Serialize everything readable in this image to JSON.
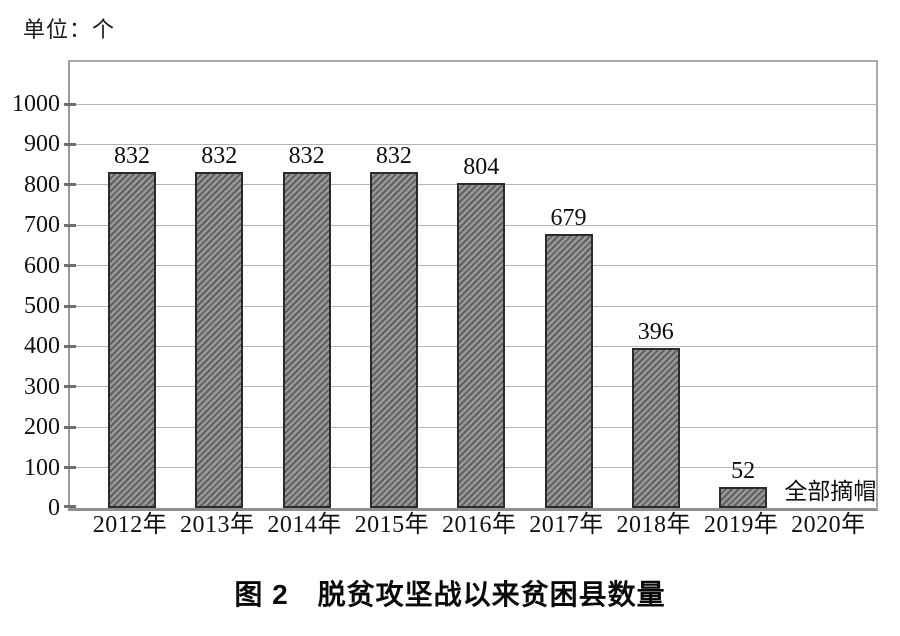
{
  "chart_data": {
    "type": "bar",
    "unit_label": "单位：个",
    "caption": "图 2　脱贫攻坚战以来贫困县数量",
    "categories": [
      "2012年",
      "2013年",
      "2014年",
      "2015年",
      "2016年",
      "2017年",
      "2018年",
      "2019年",
      "2020年"
    ],
    "values": [
      832,
      832,
      832,
      832,
      804,
      679,
      396,
      52,
      null
    ],
    "value_labels": [
      "832",
      "832",
      "832",
      "832",
      "804",
      "679",
      "396",
      "52",
      ""
    ],
    "annotation": {
      "text": "全部摘帽",
      "category": "2020年",
      "category_index": 8
    },
    "xlabel": "",
    "ylabel": "",
    "ylim": [
      0,
      1100
    ],
    "yticks": [
      0,
      100,
      200,
      300,
      400,
      500,
      600,
      700,
      800,
      900,
      1000
    ],
    "grid": "horizontal",
    "legend": "none",
    "colors": {
      "bar_fill": "#989898",
      "bar_stripe": "#606060",
      "bar_border": "#2b2b2b",
      "gridline": "#b5b5b5",
      "axis": "#9a9a9a",
      "text": "#111111"
    }
  }
}
